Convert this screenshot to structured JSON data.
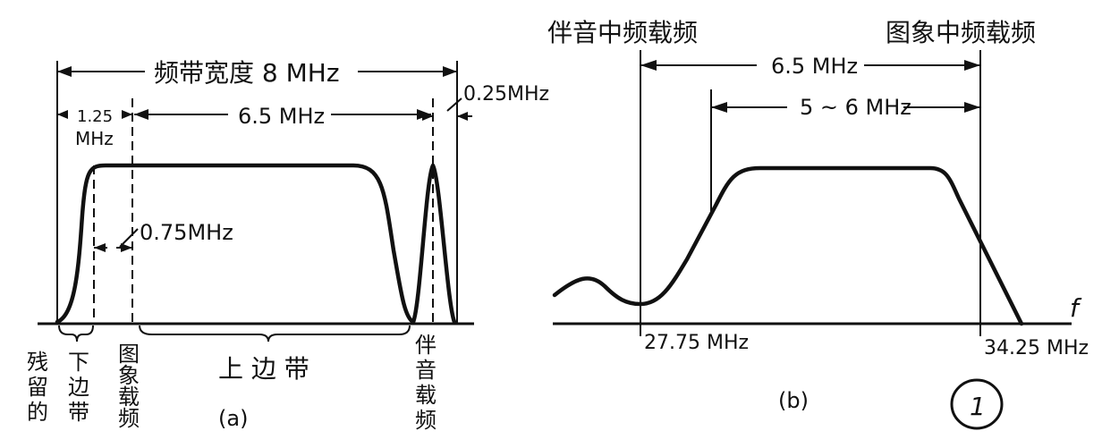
{
  "figure_a": {
    "caption": "(a)",
    "bandwidth_label": "频带宽度 8 MHz",
    "lower_sideband_width": "1.25",
    "lower_sideband_unit": "MHz",
    "upper_span_label": "6.5 MHz",
    "sound_guard_label": "0.25MHz",
    "vestigial_label": "0.75MHz",
    "bottom_labels": {
      "vestigial_1": "残",
      "vestigial_2": "留",
      "vestigial_3": "的",
      "lower_1": "下",
      "lower_2": "边",
      "lower_3": "带",
      "picture_1": "图",
      "picture_2": "象",
      "picture_3": "载",
      "picture_4": "频",
      "upper": "上 边 带",
      "sound_1": "伴",
      "sound_2": "音",
      "sound_3": "载",
      "sound_4": "频"
    }
  },
  "figure_b": {
    "caption": "(b)",
    "sound_if_label": "伴音中频载频",
    "picture_if_label": "图象中频载频",
    "span_label": "6.5 MHz",
    "passband_label": "5 ~ 6 MHz",
    "freq_left": "27.75 MHz",
    "freq_right": "34.25 MHz",
    "axis_label": "f"
  },
  "mark": "1"
}
